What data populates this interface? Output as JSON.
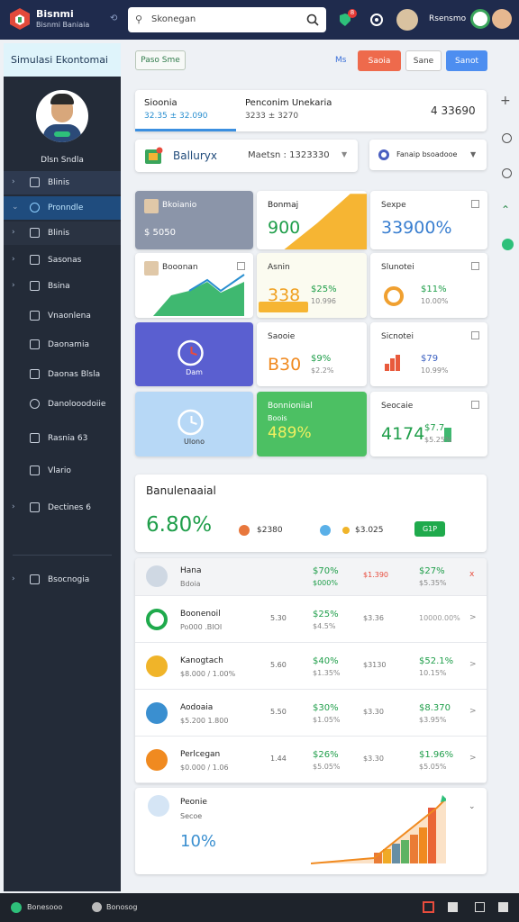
{
  "header": {
    "logo_title": "Bisnmi",
    "logo_subtitle": "Bisnmi Baniaia",
    "search_placeholder": "Skonegan",
    "badge": "8",
    "user_name": "Rsensmo"
  },
  "sidebar": {
    "title": "Simulasi Ekontomai",
    "user_name": "Dlsn Sndla",
    "menu": [
      "Blinis",
      "Pronndle",
      "Blinis",
      "Sasonas",
      "Bsina",
      "Vnaonlena",
      "Daonamia",
      "Daonas Blsla",
      "Danolooodoiie",
      "Rasnia 63",
      "Vlario",
      "Dectines 6",
      "Bsocnogia"
    ]
  },
  "toolbar": {
    "filter_button": "Paso Sme",
    "link": "Ms",
    "buttons": [
      "Saoia",
      "Sane",
      "Sanot"
    ]
  },
  "summary": {
    "left_title": "Sioonia",
    "left_value": "32.35 ± 32.090",
    "right_title": "Penconim Unekaria",
    "right_value": "3233 ± 3270",
    "total": "4 33690"
  },
  "filters": {
    "select_title": "Balluryx",
    "select_value": "Maetsn : 1323330",
    "second_select": "Fanaip bsoadooe"
  },
  "cards": [
    {
      "title": "Bkoianio",
      "value": "$ 5050"
    },
    {
      "title": "Bonmaj",
      "value": "900"
    },
    {
      "title": "Sexpe",
      "value": "33900%"
    },
    {
      "title": "Booonan"
    },
    {
      "title": "Asnin",
      "value": "338",
      "detail": "$25%",
      "detail2": "10.996"
    },
    {
      "title": "Slunotei",
      "detail": "$11%",
      "detail2": "10.00%"
    },
    {
      "caption": "Dam"
    },
    {
      "title": "Saooie",
      "value": "B30",
      "detail": "$9%",
      "detail2": "$2.2%"
    },
    {
      "title": "Sicnotei",
      "detail": "$79",
      "detail2": "10.99%"
    },
    {
      "caption": "Ulono"
    },
    {
      "title": "Bonnioniial",
      "subtitle": "Boois",
      "value": "489%"
    },
    {
      "title": "Seocaie",
      "value": "4174",
      "detail": "$7.7",
      "detail2": "$5.25%"
    }
  ],
  "overview": {
    "title": "Banulenaaial",
    "value": "6.80%",
    "legend": [
      "$2380",
      "$3.025"
    ],
    "button": "G1P"
  },
  "table": {
    "rows": [
      {
        "name": "Hana",
        "sub": "Bdoia",
        "pct": "$70%",
        "pct_sub": "$000%",
        "price": "$1.390",
        "change": "$27%",
        "change_sub": "$5.35%",
        "action": "x"
      },
      {
        "name": "Boonenoil",
        "sub": "Po000 .BIOI",
        "amount": "5.30",
        "pct": "$25%",
        "pct_sub": "$4.5%",
        "price": "$3.36",
        "change": "10000.00%",
        "action": ">"
      },
      {
        "name": "Kanogtach",
        "sub": "$8.000 / 1.00%",
        "amount": "5.60",
        "pct": "$40%",
        "pct_sub": "$1.35%",
        "price": "$3130",
        "change": "$52.1%",
        "change_sub": "10.15%",
        "action": ">"
      },
      {
        "name": "Aodoaia",
        "sub": "$5.200 1.800",
        "amount": "5.50",
        "pct": "$30%",
        "pct_sub": "$1.05%",
        "price": "$3.30",
        "change": "$8.370",
        "change_sub": "$3.95%",
        "action": ">"
      },
      {
        "name": "Perlcegan",
        "sub": "$0.000 / 1.06",
        "amount": "1.44",
        "pct": "$26%",
        "pct_sub": "$5.05%",
        "price": "$3.30",
        "change": "$1.96%",
        "change_sub": "$5.05%",
        "action": ">"
      }
    ]
  },
  "trend": {
    "title": "Peonie",
    "subtitle": "Secoe",
    "value": "10%"
  },
  "footer": {
    "left": "Bonesooo",
    "center": "Bonosog"
  }
}
